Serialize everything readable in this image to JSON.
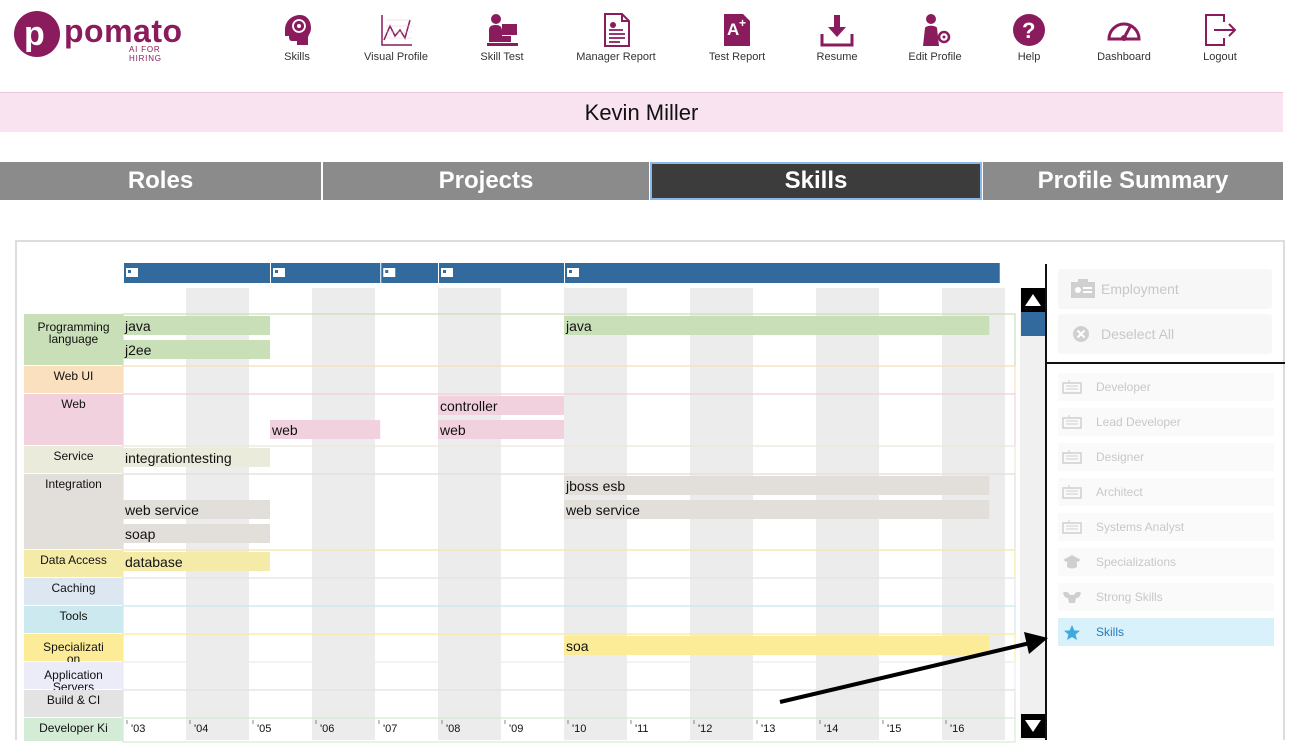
{
  "brand": {
    "word": "pomato",
    "tagline": "AI FOR HIRING"
  },
  "nav": [
    {
      "label": "Skills",
      "icon": "head-icon"
    },
    {
      "label": "Visual Profile",
      "icon": "line-chart-icon"
    },
    {
      "label": "Skill Test",
      "icon": "person-laptop-icon"
    },
    {
      "label": "Manager Report",
      "icon": "document-icon"
    },
    {
      "label": "Test Report",
      "icon": "a-plus-icon"
    },
    {
      "label": "Resume",
      "icon": "download-icon"
    },
    {
      "label": "Edit Profile",
      "icon": "person-gear-icon"
    },
    {
      "label": "Help",
      "icon": "question-icon"
    },
    {
      "label": "Dashboard",
      "icon": "gauge-icon"
    },
    {
      "label": "Logout",
      "icon": "logout-icon"
    }
  ],
  "candidate_name": "Kevin Miller",
  "tabs": [
    {
      "label": "Roles",
      "active": false
    },
    {
      "label": "Projects",
      "active": false
    },
    {
      "label": "Skills",
      "active": true
    },
    {
      "label": "Profile Summary",
      "active": false
    }
  ],
  "timeline": {
    "years": [
      "'03",
      "'04",
      "'05",
      "'06",
      "'07",
      "'08",
      "'09",
      "'10",
      "'11",
      "'12",
      "'13",
      "'14",
      "'15",
      "'16"
    ],
    "employment_markers": [
      "2003-01",
      "2005-05",
      "2007-02",
      "2008-01",
      "2010-01"
    ],
    "employment_end": "2016-12",
    "categories": [
      {
        "label": "Programming language",
        "lines": [
          "Programming",
          "language"
        ],
        "color": "#c9dfb8",
        "rows": 2
      },
      {
        "label": "Web UI",
        "lines": [
          "Web UI"
        ],
        "color": "#fbe0c0",
        "rows": 1
      },
      {
        "label": "Web",
        "lines": [
          "Web"
        ],
        "color": "#f2d1df",
        "rows": 2
      },
      {
        "label": "Service",
        "lines": [
          "Service"
        ],
        "color": "#ebebdc",
        "rows": 1
      },
      {
        "label": "Integration",
        "lines": [
          "Integration"
        ],
        "color": "#e2dfdb",
        "rows": 3
      },
      {
        "label": "Data Access",
        "lines": [
          "Data Access"
        ],
        "color": "#f4eba8",
        "rows": 1
      },
      {
        "label": "Caching",
        "lines": [
          "Caching"
        ],
        "color": "#dde7f2",
        "rows": 1
      },
      {
        "label": "Tools",
        "lines": [
          "Tools"
        ],
        "color": "#cbe9ee",
        "rows": 1
      },
      {
        "label": "Specialization",
        "lines": [
          "Specializati",
          "on"
        ],
        "color": "#fcec98",
        "rows": 1
      },
      {
        "label": "Application Servers",
        "lines": [
          "Application",
          "Servers"
        ],
        "color": "#ecebf8",
        "rows": 1
      },
      {
        "label": "Build & CI",
        "lines": [
          "Build & CI"
        ],
        "color": "#e3e3e3",
        "rows": 1
      },
      {
        "label": "Developer Kit",
        "lines": [
          "Developer Ki"
        ],
        "color": "#d4ecd6",
        "rows": 1
      }
    ],
    "skills": [
      {
        "name": "java",
        "category": 0,
        "row": 0,
        "start": "2003-01",
        "end": "2005-05"
      },
      {
        "name": "j2ee",
        "category": 0,
        "row": 1,
        "start": "2003-01",
        "end": "2005-05"
      },
      {
        "name": "java",
        "category": 0,
        "row": 0,
        "start": "2010-01",
        "end": "2016-10"
      },
      {
        "name": "controller",
        "category": 2,
        "row": 0,
        "start": "2008-01",
        "end": "2010-01"
      },
      {
        "name": "web",
        "category": 2,
        "row": 1,
        "start": "2005-05",
        "end": "2007-02"
      },
      {
        "name": "web",
        "category": 2,
        "row": 1,
        "start": "2008-01",
        "end": "2010-01"
      },
      {
        "name": "integrationtesting",
        "category": 3,
        "row": 0,
        "start": "2003-01",
        "end": "2005-05"
      },
      {
        "name": "jboss esb",
        "category": 4,
        "row": 0,
        "start": "2010-01",
        "end": "2016-10"
      },
      {
        "name": "web service",
        "category": 4,
        "row": 1,
        "start": "2003-01",
        "end": "2005-05"
      },
      {
        "name": "web service",
        "category": 4,
        "row": 1,
        "start": "2010-01",
        "end": "2016-10"
      },
      {
        "name": "soap",
        "category": 4,
        "row": 2,
        "start": "2003-01",
        "end": "2005-05"
      },
      {
        "name": "database",
        "category": 5,
        "row": 0,
        "start": "2003-01",
        "end": "2005-05"
      },
      {
        "name": "soa",
        "category": 8,
        "row": 0,
        "start": "2010-01",
        "end": "2016-10"
      }
    ]
  },
  "sidebar": {
    "buttons": [
      {
        "label": "Employment",
        "icon": "id-card-icon"
      },
      {
        "label": "Deselect All",
        "icon": "close-circle-icon"
      }
    ],
    "items": [
      {
        "label": "Developer",
        "icon": "keyboard-icon",
        "active": false
      },
      {
        "label": "Lead Developer",
        "icon": "keyboard-icon",
        "active": false
      },
      {
        "label": "Designer",
        "icon": "keyboard-icon",
        "active": false
      },
      {
        "label": "Architect",
        "icon": "keyboard-icon",
        "active": false
      },
      {
        "label": "Systems Analyst",
        "icon": "keyboard-icon",
        "active": false
      },
      {
        "label": "Specializations",
        "icon": "graduation-cap-icon",
        "active": false
      },
      {
        "label": "Strong Skills",
        "icon": "muscle-icon",
        "active": false
      },
      {
        "label": "Skills",
        "icon": "star-icon",
        "active": true
      }
    ]
  },
  "colors": {
    "brand": "#8a1b5c",
    "employment_bar": "#336a9e",
    "active_tab": "#3c3c3c",
    "tab": "#8b8b8b"
  }
}
